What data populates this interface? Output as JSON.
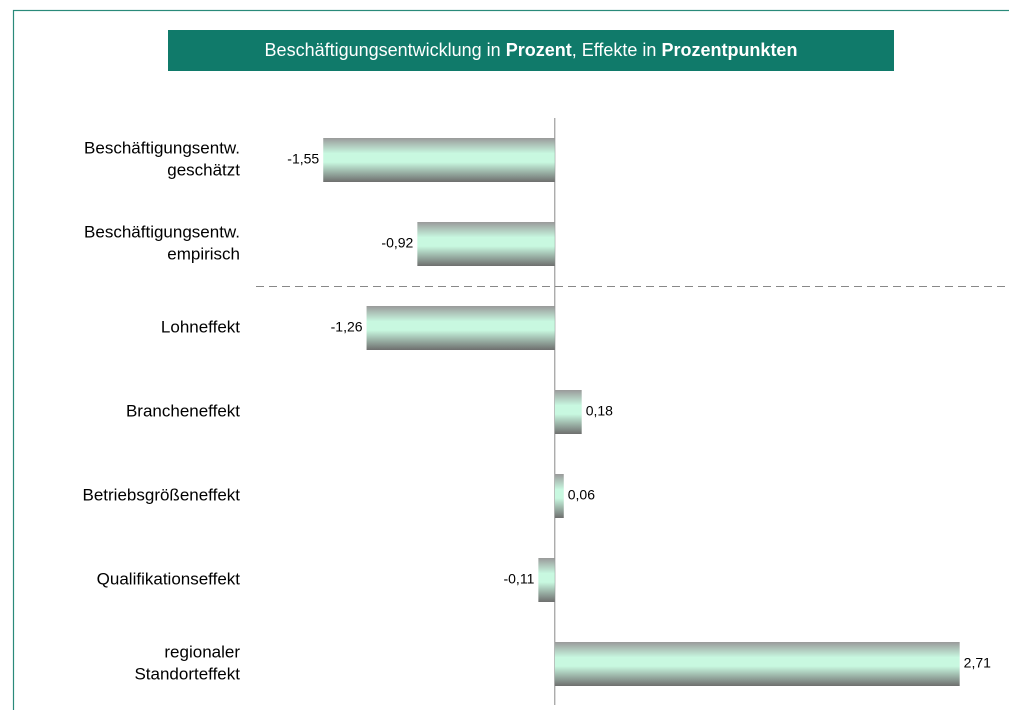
{
  "chart_data": {
    "type": "hbar",
    "title": [
      "Beschäftigungsentwicklung in ",
      "Prozent",
      ", Effekte in ",
      "Prozentpunkten"
    ],
    "title_bold": [
      false,
      true,
      false,
      true
    ],
    "categories": [
      [
        "Beschäftigungsentw.",
        "geschätzt"
      ],
      [
        "Beschäftigungsentw.",
        "empirisch"
      ],
      [
        "Lohneffekt"
      ],
      [
        "Brancheneffekt"
      ],
      [
        "Betriebsgrößeneffekt"
      ],
      [
        "Qualifikationseffekt"
      ],
      [
        "regionaler",
        "Standorteffekt"
      ]
    ],
    "values": [
      -1.55,
      -0.92,
      -1.26,
      0.18,
      0.06,
      -0.11,
      2.71
    ],
    "value_labels": [
      "-1,55",
      "-0,92",
      "-1,26",
      "0,18",
      "0,06",
      "-0,11",
      "2,71"
    ],
    "xlim": [
      -2,
      3
    ],
    "separator_after": 1,
    "color": "#c8f8e0"
  }
}
